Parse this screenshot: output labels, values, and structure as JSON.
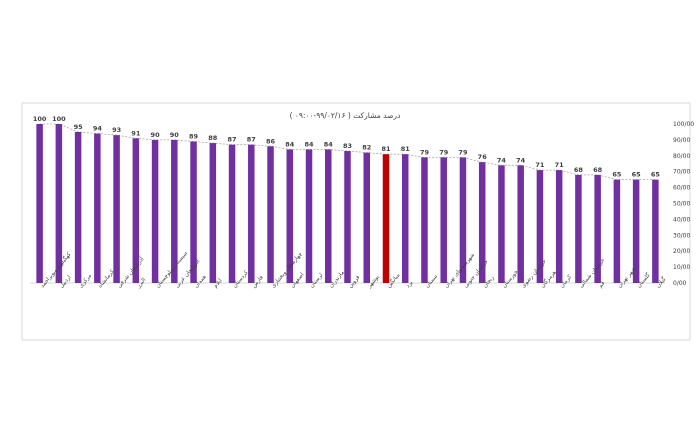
{
  "chart_data": {
    "type": "bar",
    "title": "درصد مشارکت ( ۹۹/۰۲/۱۶-۰۹:۰۰ )",
    "xlabel": "",
    "ylabel": "",
    "ylim": [
      0,
      100
    ],
    "y_ticks": [
      "0/00",
      "10/00",
      "20/00",
      "30/00",
      "40/00",
      "50/00",
      "60/00",
      "70/00",
      "80/00",
      "90/00",
      "100/00"
    ],
    "y_axis_side": "right",
    "grid": false,
    "legend": "none",
    "trendline": true,
    "categories": [
      "کهگیلویه وبویراحمد",
      "اردبیل",
      "مرکزی",
      "کرمانشاه",
      "آذربایجان شرقی",
      "البرز",
      "سیستان وبلوچستان",
      "آذربایجان غربی",
      "همدان",
      "ایلام",
      "کردستان",
      "فارس",
      "چهارمحال وبختیاری",
      "اصفهان",
      "لرستان",
      "مازندران",
      "قزوین",
      "بوشهر",
      "میانگین",
      "یزد",
      "سمنان",
      "شهرستانهای تهران",
      "خراسان جنوبی",
      "زنجان",
      "خوزستان",
      "خراسان رضوی",
      "هرمزگان",
      "کرمان",
      "خراسان شمالی",
      "قم",
      "شهر تهران",
      "گلستان",
      "گیلان"
    ],
    "values": [
      100,
      100,
      95,
      94,
      93,
      91,
      90,
      90,
      89,
      88,
      87,
      87,
      86,
      84,
      84,
      84,
      83,
      82,
      81,
      81,
      79,
      79,
      79,
      76,
      74,
      74,
      71,
      71,
      68,
      68,
      65,
      65,
      65
    ],
    "highlight_category": "میانگین",
    "colors": {
      "bar": "#7030a0",
      "highlight": "#c00000",
      "trendline": "#a6a6a6",
      "text": "#404040",
      "border": "#d9d9d9"
    }
  }
}
